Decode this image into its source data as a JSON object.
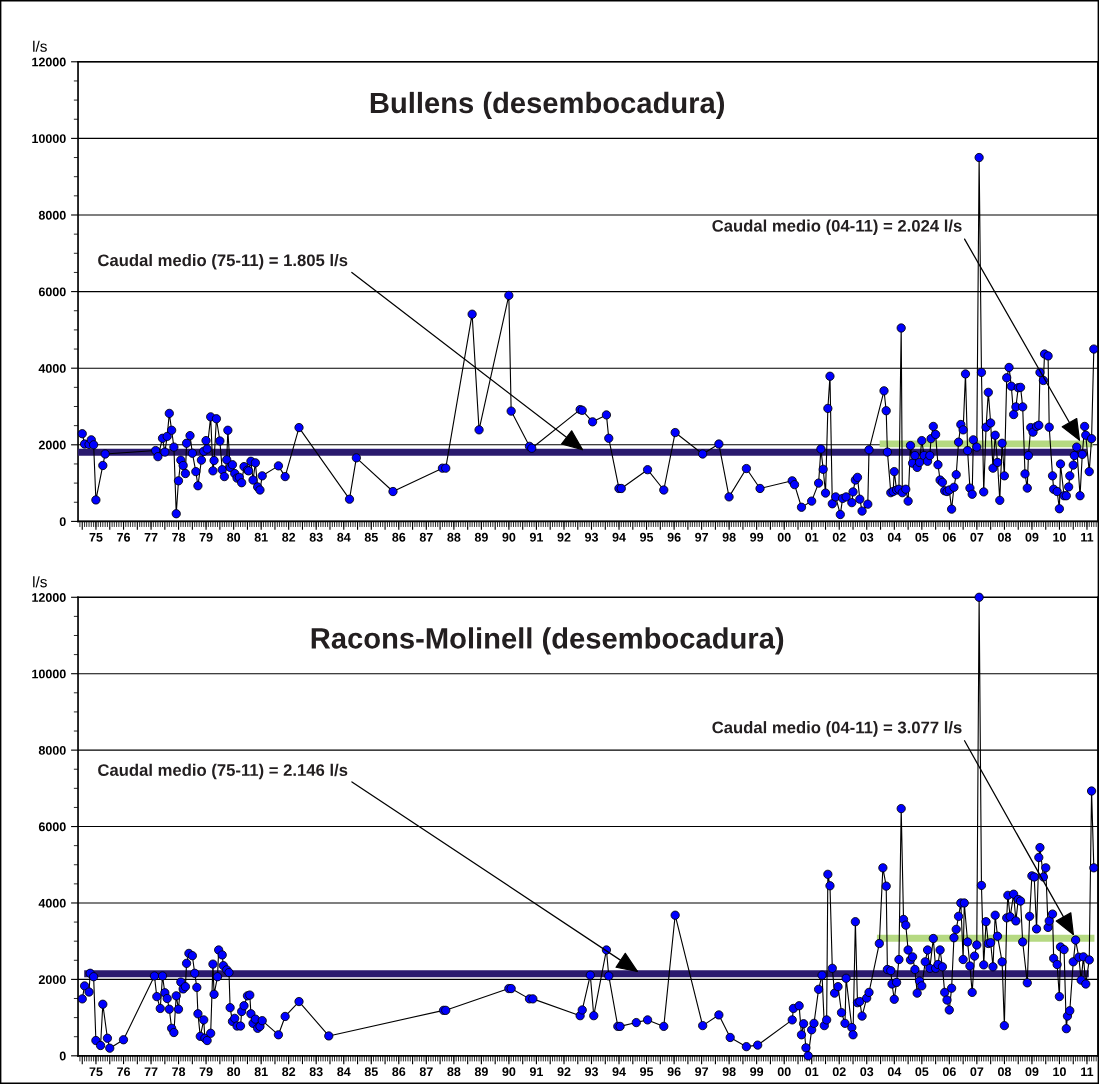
{
  "chart_data": [
    {
      "type": "line",
      "title": "Bullens (desembocadura)",
      "ylabel": "l/s",
      "marker": "circle",
      "grid": "y",
      "xlim": [
        "1974-11-06",
        "2011-11-24"
      ],
      "ylim": [
        0,
        12000
      ],
      "yticks": [
        0,
        2000,
        4000,
        6000,
        8000,
        10000,
        12000
      ],
      "xticks": [
        {
          "value": "1975",
          "label": null
        },
        {
          "value": "1975-07-02",
          "label": "75"
        },
        {
          "value": "1976",
          "label": null
        },
        {
          "value": "1976-07-02",
          "label": "76"
        },
        {
          "value": "1977",
          "label": null
        },
        {
          "value": "1977-07-02",
          "label": "77"
        },
        {
          "value": "1978",
          "label": null
        },
        {
          "value": "1978-07-02",
          "label": "78"
        },
        {
          "value": "1979",
          "label": null
        },
        {
          "value": "1979-07-02",
          "label": "79"
        },
        {
          "value": "1980",
          "label": null
        },
        {
          "value": "1980-07-02",
          "label": "80"
        },
        {
          "value": "1981",
          "label": null
        },
        {
          "value": "1981-07-02",
          "label": "81"
        },
        {
          "value": "1982",
          "label": null
        },
        {
          "value": "1982-07-02",
          "label": "82"
        },
        {
          "value": "1983",
          "label": null
        },
        {
          "value": "1983-07-02",
          "label": "83"
        },
        {
          "value": "1984",
          "label": null
        },
        {
          "value": "1984-07-02",
          "label": "84"
        },
        {
          "value": "1985",
          "label": null
        },
        {
          "value": "1985-07-02",
          "label": "85"
        },
        {
          "value": "1986",
          "label": null
        },
        {
          "value": "1986-07-02",
          "label": "86"
        },
        {
          "value": "1987",
          "label": null
        },
        {
          "value": "1987-07-02",
          "label": "87"
        },
        {
          "value": "1988",
          "label": null
        },
        {
          "value": "1988-07-02",
          "label": "88"
        },
        {
          "value": "1989",
          "label": null
        },
        {
          "value": "1989-07-02",
          "label": "89"
        },
        {
          "value": "1990",
          "label": null
        },
        {
          "value": "1990-07-02",
          "label": "90"
        },
        {
          "value": "1991",
          "label": null
        },
        {
          "value": "1991-07-02",
          "label": "91"
        },
        {
          "value": "1992",
          "label": null
        },
        {
          "value": "1992-07-02",
          "label": "92"
        },
        {
          "value": "1993",
          "label": null
        },
        {
          "value": "1993-07-02",
          "label": "93"
        },
        {
          "value": "1994",
          "label": null
        },
        {
          "value": "1994-07-02",
          "label": "94"
        },
        {
          "value": "1995",
          "label": null
        },
        {
          "value": "1995-07-02",
          "label": "95"
        },
        {
          "value": "1996",
          "label": null
        },
        {
          "value": "1996-07-02",
          "label": "96"
        },
        {
          "value": "1997",
          "label": null
        },
        {
          "value": "1997-07-02",
          "label": "97"
        },
        {
          "value": "1998",
          "label": null
        },
        {
          "value": "1998-07-02",
          "label": "98"
        },
        {
          "value": "1999",
          "label": null
        },
        {
          "value": "1999-07-02",
          "label": "99"
        },
        {
          "value": "2000",
          "label": null
        },
        {
          "value": "2000-07-02",
          "label": "00"
        },
        {
          "value": "2001",
          "label": null
        },
        {
          "value": "2001-07-02",
          "label": "01"
        },
        {
          "value": "2002",
          "label": null
        },
        {
          "value": "2002-07-02",
          "label": "02"
        },
        {
          "value": "2003",
          "label": null
        },
        {
          "value": "2003-07-02",
          "label": "03"
        },
        {
          "value": "2004",
          "label": null
        },
        {
          "value": "2004-07-02",
          "label": "04"
        },
        {
          "value": "2005",
          "label": null
        },
        {
          "value": "2005-07-02",
          "label": "05"
        },
        {
          "value": "2006",
          "label": null
        },
        {
          "value": "2006-07-02",
          "label": "06"
        },
        {
          "value": "2007",
          "label": null
        },
        {
          "value": "2007-07-02",
          "label": "07"
        },
        {
          "value": "2008",
          "label": null
        },
        {
          "value": "2008-07-02",
          "label": "08"
        },
        {
          "value": "2009",
          "label": null
        },
        {
          "value": "2009-07-02",
          "label": "09"
        },
        {
          "value": "2010",
          "label": null
        },
        {
          "value": "2010-07-02",
          "label": "10"
        },
        {
          "value": "2011",
          "label": null
        },
        {
          "value": "2011-07-02",
          "label": "11"
        }
      ],
      "series": [
        {
          "color": "#0000ff",
          "x": [
            "1975-01-01",
            "1975-02-01",
            "1975-04-01",
            "1975-05-01",
            "1975-06-01",
            "1975-07-01",
            "1975-10-01",
            "1975-11-01",
            "1977-09-01",
            "1977-10-01",
            "1977-12-01",
            "1978-01-01",
            "1978-02-01",
            "1978-03-01",
            "1978-04-01",
            "1978-05-01",
            "1978-06-01",
            "1978-07-01",
            "1978-08-01",
            "1978-09-01",
            "1978-10-01",
            "1978-10-16",
            "1978-12-01",
            "1979-01-01",
            "1979-02-16",
            "1979-03-16",
            "1979-05-01",
            "1979-06-01",
            "1979-07-01",
            "1979-07-16",
            "1979-09-01",
            "1979-10-01",
            "1979-10-16",
            "1979-11-16",
            "1980-01-01",
            "1980-02-01",
            "1980-03-01",
            "1980-04-01",
            "1980-04-16",
            "1980-05-16",
            "1980-06-16",
            "1980-07-16",
            "1980-08-16",
            "1980-09-16",
            "1980-10-16",
            "1980-11-16",
            "1981-01-01",
            "1981-01-16",
            "1981-02-16",
            "1981-03-16",
            "1981-04-16",
            "1981-05-16",
            "1981-06-16",
            "1981-07-16",
            "1982-02-16",
            "1982-05-16",
            "1982-11-16",
            "1984-09-16",
            "1984-12-16",
            "1986-04-16",
            "1988-02-01",
            "1988-03-16",
            "1989-03-01",
            "1989-06-01",
            "1990-07-01",
            "1990-08-01",
            "1991-04-01",
            "1991-05-01",
            "1993-02-01",
            "1993-03-01",
            "1993-07-16",
            "1994-01-16",
            "1994-02-16",
            "1994-07-01",
            "1994-08-01",
            "1995-07-16",
            "1996-02-16",
            "1996-07-16",
            "1997-07-16",
            "1998-02-16",
            "1998-07-01",
            "1999-02-16",
            "1999-08-16",
            "2000-10-16",
            "2000-11-16",
            "2001-02-16",
            "2001-07-01",
            "2001-10-01",
            "2001-11-01",
            "2001-12-01",
            "2002-01-01",
            "2002-02-01",
            "2002-03-01",
            "2002-04-01",
            "2002-05-16",
            "2002-07-16",
            "2002-08-16",
            "2002-10-01",
            "2002-12-16",
            "2003-01-01",
            "2003-02-01",
            "2003-03-01",
            "2003-04-01",
            "2003-05-01",
            "2003-07-16",
            "2003-08-01",
            "2004-02-16",
            "2004-03-16",
            "2004-04-01",
            "2004-05-16",
            "2004-06-16",
            "2004-07-01",
            "2004-08-01",
            "2004-09-01",
            "2004-10-01",
            "2004-10-16",
            "2004-12-01",
            "2005-01-01",
            "2005-02-01",
            "2005-03-01",
            "2005-04-01",
            "2005-05-01",
            "2005-06-01",
            "2005-07-01",
            "2005-08-01",
            "2005-09-16",
            "2005-10-16",
            "2005-11-01",
            "2005-12-01",
            "2006-01-01",
            "2006-02-01",
            "2006-03-01",
            "2006-04-01",
            "2006-05-01",
            "2006-06-01",
            "2006-07-01",
            "2006-08-01",
            "2006-09-01",
            "2006-10-01",
            "2006-11-01",
            "2006-12-01",
            "2007-01-01",
            "2007-02-01",
            "2007-03-01",
            "2007-04-01",
            "2007-05-01",
            "2007-05-16",
            "2007-07-01",
            "2007-08-01",
            "2007-09-01",
            "2007-10-01",
            "2007-11-01",
            "2007-12-01",
            "2008-01-01",
            "2008-02-01",
            "2008-03-01",
            "2008-04-01",
            "2008-05-01",
            "2008-06-01",
            "2008-07-01",
            "2008-08-01",
            "2008-09-01",
            "2008-10-01",
            "2008-11-01",
            "2008-12-01",
            "2009-01-01",
            "2009-02-01",
            "2009-03-01",
            "2009-04-01",
            "2009-05-01",
            "2009-05-16",
            "2009-06-16",
            "2009-07-16",
            "2009-09-01",
            "2009-10-01",
            "2009-10-16",
            "2009-12-01",
            "2009-12-16",
            "2010-02-01",
            "2010-02-16",
            "2010-04-01",
            "2010-04-16",
            "2010-06-01",
            "2010-07-01",
            "2010-07-16",
            "2010-09-01",
            "2010-10-01",
            "2010-11-01",
            "2010-11-16",
            "2011-01-01",
            "2011-01-16",
            "2011-02-16",
            "2011-04-01",
            "2011-05-01",
            "2011-06-01",
            "2011-06-16",
            "2011-08-01",
            "2011-09-01",
            "2011-10-01"
          ],
          "values": [
            2290,
            2020,
            2010,
            2130,
            2000,
            560,
            1460,
            1760,
            1850,
            1690,
            2170,
            1810,
            2220,
            2820,
            2380,
            1940,
            200,
            1060,
            1600,
            1460,
            1250,
            2040,
            2240,
            1780,
            1300,
            930,
            1600,
            1830,
            2110,
            1890,
            2730,
            1320,
            1590,
            2680,
            2100,
            1350,
            1170,
            1610,
            2380,
            1410,
            1480,
            1250,
            1130,
            1150,
            1010,
            1430,
            1340,
            1320,
            1570,
            1080,
            1530,
            900,
            820,
            1190,
            1450,
            1170,
            2450,
            580,
            1660,
            780,
            1390,
            1390,
            5410,
            2390,
            5900,
            2880,
            1960,
            1910,
            2920,
            2900,
            2600,
            2780,
            2170,
            860,
            860,
            1350,
            820,
            2320,
            1760,
            2020,
            640,
            1380,
            860,
            1060,
            960,
            370,
            530,
            1000,
            1890,
            1360,
            740,
            2950,
            3790,
            460,
            640,
            180,
            600,
            640,
            490,
            770,
            1080,
            1150,
            580,
            270,
            450,
            1870,
            3410,
            2890,
            1810,
            750,
            780,
            1300,
            820,
            840,
            5050,
            750,
            840,
            530,
            1980,
            1520,
            1720,
            1410,
            1540,
            2110,
            1720,
            1570,
            1720,
            2160,
            2480,
            2270,
            1480,
            1080,
            1020,
            800,
            780,
            820,
            320,
            890,
            1220,
            2070,
            2530,
            2390,
            3850,
            1850,
            870,
            710,
            2130,
            1940,
            9500,
            3890,
            770,
            2460,
            3370,
            2570,
            1390,
            2250,
            1540,
            550,
            2040,
            1190,
            3750,
            4020,
            3530,
            2790,
            2990,
            3490,
            3500,
            2990,
            1240,
            870,
            1720,
            2450,
            2330,
            2480,
            2510,
            3890,
            3680,
            4370,
            4320,
            2460,
            1190,
            840,
            780,
            330,
            1500,
            670,
            670,
            900,
            1190,
            1470,
            1720,
            1940,
            670,
            1750,
            2480,
            2250,
            1300,
            2160,
            4500
          ]
        },
        {
          "name": "Caudal medio (75-11) = 1.805 l/s",
          "color": "#2a1a6e",
          "marker": "none",
          "x": [
            "1974-11-06",
            "2011-07-01"
          ],
          "values": [
            1805,
            1805
          ]
        },
        {
          "name": "Caudal medio (04-11) = 2.024 l/s",
          "color": "#b5d982",
          "marker": "none",
          "x": [
            "2003-12-20",
            "2011-09-16"
          ],
          "values": [
            2024,
            2024
          ]
        }
      ]
    },
    {
      "type": "line",
      "title": "Racons-Molinell (desembocadura)",
      "ylabel": "l/s",
      "marker": "circle",
      "grid": "y",
      "xlim": [
        "1974-11-06",
        "2011-11-24"
      ],
      "ylim": [
        0,
        12000
      ],
      "yticks": [
        0,
        2000,
        4000,
        6000,
        8000,
        10000,
        12000
      ],
      "xticks": [
        {
          "value": "1975",
          "label": null
        },
        {
          "value": "1975-07-02",
          "label": "75"
        },
        {
          "value": "1976",
          "label": null
        },
        {
          "value": "1976-07-02",
          "label": "76"
        },
        {
          "value": "1977",
          "label": null
        },
        {
          "value": "1977-07-02",
          "label": "77"
        },
        {
          "value": "1978",
          "label": null
        },
        {
          "value": "1978-07-02",
          "label": "78"
        },
        {
          "value": "1979",
          "label": null
        },
        {
          "value": "1979-07-02",
          "label": "79"
        },
        {
          "value": "1980",
          "label": null
        },
        {
          "value": "1980-07-02",
          "label": "80"
        },
        {
          "value": "1981",
          "label": null
        },
        {
          "value": "1981-07-02",
          "label": "81"
        },
        {
          "value": "1982",
          "label": null
        },
        {
          "value": "1982-07-02",
          "label": "82"
        },
        {
          "value": "1983",
          "label": null
        },
        {
          "value": "1983-07-02",
          "label": "83"
        },
        {
          "value": "1984",
          "label": null
        },
        {
          "value": "1984-07-02",
          "label": "84"
        },
        {
          "value": "1985",
          "label": null
        },
        {
          "value": "1985-07-02",
          "label": "85"
        },
        {
          "value": "1986",
          "label": null
        },
        {
          "value": "1986-07-02",
          "label": "86"
        },
        {
          "value": "1987",
          "label": null
        },
        {
          "value": "1987-07-02",
          "label": "87"
        },
        {
          "value": "1988",
          "label": null
        },
        {
          "value": "1988-07-02",
          "label": "88"
        },
        {
          "value": "1989",
          "label": null
        },
        {
          "value": "1989-07-02",
          "label": "89"
        },
        {
          "value": "1990",
          "label": null
        },
        {
          "value": "1990-07-02",
          "label": "90"
        },
        {
          "value": "1991",
          "label": null
        },
        {
          "value": "1991-07-02",
          "label": "91"
        },
        {
          "value": "1992",
          "label": null
        },
        {
          "value": "1992-07-02",
          "label": "92"
        },
        {
          "value": "1993",
          "label": null
        },
        {
          "value": "1993-07-02",
          "label": "93"
        },
        {
          "value": "1994",
          "label": null
        },
        {
          "value": "1994-07-02",
          "label": "94"
        },
        {
          "value": "1995",
          "label": null
        },
        {
          "value": "1995-07-02",
          "label": "95"
        },
        {
          "value": "1996",
          "label": null
        },
        {
          "value": "1996-07-02",
          "label": "96"
        },
        {
          "value": "1997",
          "label": null
        },
        {
          "value": "1997-07-02",
          "label": "97"
        },
        {
          "value": "1998",
          "label": null
        },
        {
          "value": "1998-07-02",
          "label": "98"
        },
        {
          "value": "1999",
          "label": null
        },
        {
          "value": "1999-07-02",
          "label": "99"
        },
        {
          "value": "2000",
          "label": null
        },
        {
          "value": "2000-07-02",
          "label": "00"
        },
        {
          "value": "2001",
          "label": null
        },
        {
          "value": "2001-07-02",
          "label": "01"
        },
        {
          "value": "2002",
          "label": null
        },
        {
          "value": "2002-07-02",
          "label": "02"
        },
        {
          "value": "2003",
          "label": null
        },
        {
          "value": "2003-07-02",
          "label": "03"
        },
        {
          "value": "2004",
          "label": null
        },
        {
          "value": "2004-07-02",
          "label": "04"
        },
        {
          "value": "2005",
          "label": null
        },
        {
          "value": "2005-07-02",
          "label": "05"
        },
        {
          "value": "2006",
          "label": null
        },
        {
          "value": "2006-07-02",
          "label": "06"
        },
        {
          "value": "2007",
          "label": null
        },
        {
          "value": "2007-07-02",
          "label": "07"
        },
        {
          "value": "2008",
          "label": null
        },
        {
          "value": "2008-07-02",
          "label": "08"
        },
        {
          "value": "2009",
          "label": null
        },
        {
          "value": "2009-07-02",
          "label": "09"
        },
        {
          "value": "2010",
          "label": null
        },
        {
          "value": "2010-07-02",
          "label": "10"
        },
        {
          "value": "2011",
          "label": null
        },
        {
          "value": "2011-07-02",
          "label": "11"
        }
      ],
      "series": [
        {
          "color": "#0000ff",
          "x": [
            "1975-01-01",
            "1975-02-01",
            "1975-04-01",
            "1975-04-16",
            "1975-06-01",
            "1975-07-01",
            "1975-09-01",
            "1975-10-01",
            "1975-12-01",
            "1976-01-01",
            "1976-07-01",
            "1977-08-16",
            "1977-09-16",
            "1977-11-01",
            "1977-12-01",
            "1978-01-01",
            "1978-02-01",
            "1978-03-01",
            "1978-04-01",
            "1978-05-01",
            "1978-06-01",
            "1978-07-01",
            "1978-08-01",
            "1978-09-01",
            "1978-10-01",
            "1978-10-16",
            "1978-11-16",
            "1979-01-01",
            "1979-02-01",
            "1979-03-01",
            "1979-03-16",
            "1979-04-16",
            "1979-06-01",
            "1979-06-16",
            "1979-07-16",
            "1979-09-01",
            "1979-10-01",
            "1979-10-16",
            "1979-12-01",
            "1979-12-16",
            "1980-02-01",
            "1980-02-16",
            "1980-04-01",
            "1980-05-01",
            "1980-05-16",
            "1980-06-16",
            "1980-07-16",
            "1980-08-16",
            "1980-10-01",
            "1980-10-16",
            "1980-11-16",
            "1981-01-01",
            "1981-02-01",
            "1981-02-16",
            "1981-03-16",
            "1981-04-16",
            "1981-05-16",
            "1981-06-16",
            "1981-07-16",
            "1982-02-16",
            "1982-05-16",
            "1982-11-16",
            "1983-12-16",
            "1988-02-16",
            "1988-03-16",
            "1990-07-01",
            "1990-08-01",
            "1991-04-01",
            "1991-05-16",
            "1993-02-01",
            "1993-03-01",
            "1993-06-16",
            "1993-08-01",
            "1994-01-16",
            "1994-02-16",
            "1994-06-16",
            "1994-07-16",
            "1995-02-16",
            "1995-07-16",
            "1996-02-16",
            "1996-07-16",
            "1997-07-16",
            "1998-02-16",
            "1998-07-16",
            "1999-02-16",
            "1999-07-16",
            "2000-10-16",
            "2000-11-01",
            "2001-01-16",
            "2001-02-16",
            "2001-03-16",
            "2001-04-16",
            "2001-05-16",
            "2001-07-01",
            "2001-08-01",
            "2001-10-01",
            "2001-11-16",
            "2001-12-16",
            "2002-01-16",
            "2002-02-01",
            "2002-03-01",
            "2002-04-01",
            "2002-05-01",
            "2002-06-16",
            "2002-08-01",
            "2002-09-16",
            "2002-10-01",
            "2002-12-16",
            "2003-01-01",
            "2003-02-01",
            "2003-03-01",
            "2003-04-01",
            "2003-05-01",
            "2003-07-01",
            "2003-08-01",
            "2003-12-16",
            "2004-02-01",
            "2004-03-16",
            "2004-04-01",
            "2004-05-16",
            "2004-06-01",
            "2004-07-01",
            "2004-08-01",
            "2004-09-01",
            "2004-10-01",
            "2004-11-01",
            "2004-12-01",
            "2005-01-01",
            "2005-02-01",
            "2005-03-01",
            "2005-04-01",
            "2005-05-01",
            "2005-06-01",
            "2005-07-01",
            "2005-08-16",
            "2005-09-16",
            "2005-10-16",
            "2005-12-01",
            "2006-01-01",
            "2006-02-01",
            "2006-03-01",
            "2006-04-01",
            "2006-05-01",
            "2006-06-01",
            "2006-07-01",
            "2006-08-01",
            "2006-09-01",
            "2006-10-01",
            "2006-11-01",
            "2006-12-01",
            "2007-01-01",
            "2007-01-16",
            "2007-03-01",
            "2007-04-01",
            "2007-05-01",
            "2007-06-01",
            "2007-07-01",
            "2007-08-01",
            "2007-09-01",
            "2007-10-01",
            "2007-11-01",
            "2007-12-01",
            "2008-01-01",
            "2008-02-01",
            "2008-03-01",
            "2008-04-01",
            "2008-06-01",
            "2008-07-01",
            "2008-08-01",
            "2008-08-16",
            "2008-09-16",
            "2008-11-01",
            "2008-12-01",
            "2009-01-01",
            "2009-02-01",
            "2009-03-01",
            "2009-05-01",
            "2009-06-01",
            "2009-07-01",
            "2009-08-01",
            "2009-09-01",
            "2009-10-01",
            "2009-10-16",
            "2009-12-01",
            "2010-01-01",
            "2010-02-01",
            "2010-02-16",
            "2010-04-01",
            "2010-04-16",
            "2010-06-01",
            "2010-07-01",
            "2010-07-16",
            "2010-09-01",
            "2010-10-01",
            "2010-10-16",
            "2010-11-16",
            "2011-01-01",
            "2011-02-01",
            "2011-03-16",
            "2011-04-16",
            "2011-05-16",
            "2011-06-16",
            "2011-08-01",
            "2011-09-01",
            "2011-10-01"
          ],
          "values": [
            1490,
            1830,
            1670,
            2160,
            2070,
            400,
            270,
            1350,
            460,
            200,
            420,
            2090,
            1550,
            1240,
            2090,
            1650,
            1500,
            1220,
            720,
            610,
            1570,
            1220,
            1930,
            1750,
            1810,
            2420,
            2680,
            2620,
            2160,
            1790,
            1100,
            510,
            940,
            460,
            400,
            590,
            2400,
            1610,
            2070,
            2770,
            2640,
            2360,
            2250,
            2180,
            1260,
            900,
            980,
            780,
            780,
            1160,
            1310,
            1570,
            1590,
            1100,
            850,
            960,
            720,
            770,
            920,
            550,
            1030,
            1420,
            520,
            1190,
            1190,
            1760,
            1760,
            1490,
            1490,
            1050,
            1200,
            2110,
            1050,
            2770,
            2090,
            770,
            770,
            870,
            940,
            770,
            3680,
            790,
            1070,
            480,
            240,
            280,
            940,
            1240,
            1310,
            550,
            840,
            210,
            0,
            680,
            850,
            1740,
            2110,
            790,
            940,
            4750,
            4450,
            2290,
            1640,
            1810,
            1130,
            850,
            2030,
            740,
            550,
            3510,
            1390,
            1420,
            1040,
            1510,
            1660,
            2940,
            4920,
            4440,
            2260,
            2230,
            1880,
            1480,
            1920,
            2520,
            6470,
            3570,
            3420,
            2770,
            2510,
            2590,
            2260,
            1640,
            1960,
            1830,
            2460,
            2770,
            2290,
            3070,
            2290,
            2390,
            2770,
            2330,
            1660,
            1460,
            1200,
            1770,
            3090,
            3310,
            3650,
            4000,
            2520,
            4000,
            2980,
            2350,
            1660,
            2610,
            2900,
            12000,
            4460,
            2380,
            3510,
            2940,
            2960,
            2330,
            3680,
            3130,
            2460,
            790,
            3610,
            4200,
            3640,
            4230,
            3530,
            4090,
            4050,
            2980,
            1910,
            3650,
            4710,
            4680,
            3320,
            5190,
            5450,
            4680,
            4920,
            3360,
            3530,
            3710,
            2550,
            2390,
            1550,
            2850,
            2780,
            710,
            1040,
            1180,
            2460,
            3030,
            2580,
            1980,
            2590,
            1880,
            2510,
            6930,
            4920
          ]
        },
        {
          "name": "Caudal medio (75-11) = 2.146 l/s",
          "color": "#2a1a6e",
          "marker": "none",
          "x": [
            "1975-01-27",
            "2011-07-27"
          ],
          "values": [
            2146,
            2146
          ]
        },
        {
          "name": "Caudal medio (04-11) = 3.077 l/s",
          "color": "#b5d982",
          "marker": "none",
          "x": [
            "2003-11-14",
            "2011-10-09"
          ],
          "values": [
            3077,
            3077
          ]
        }
      ]
    }
  ]
}
